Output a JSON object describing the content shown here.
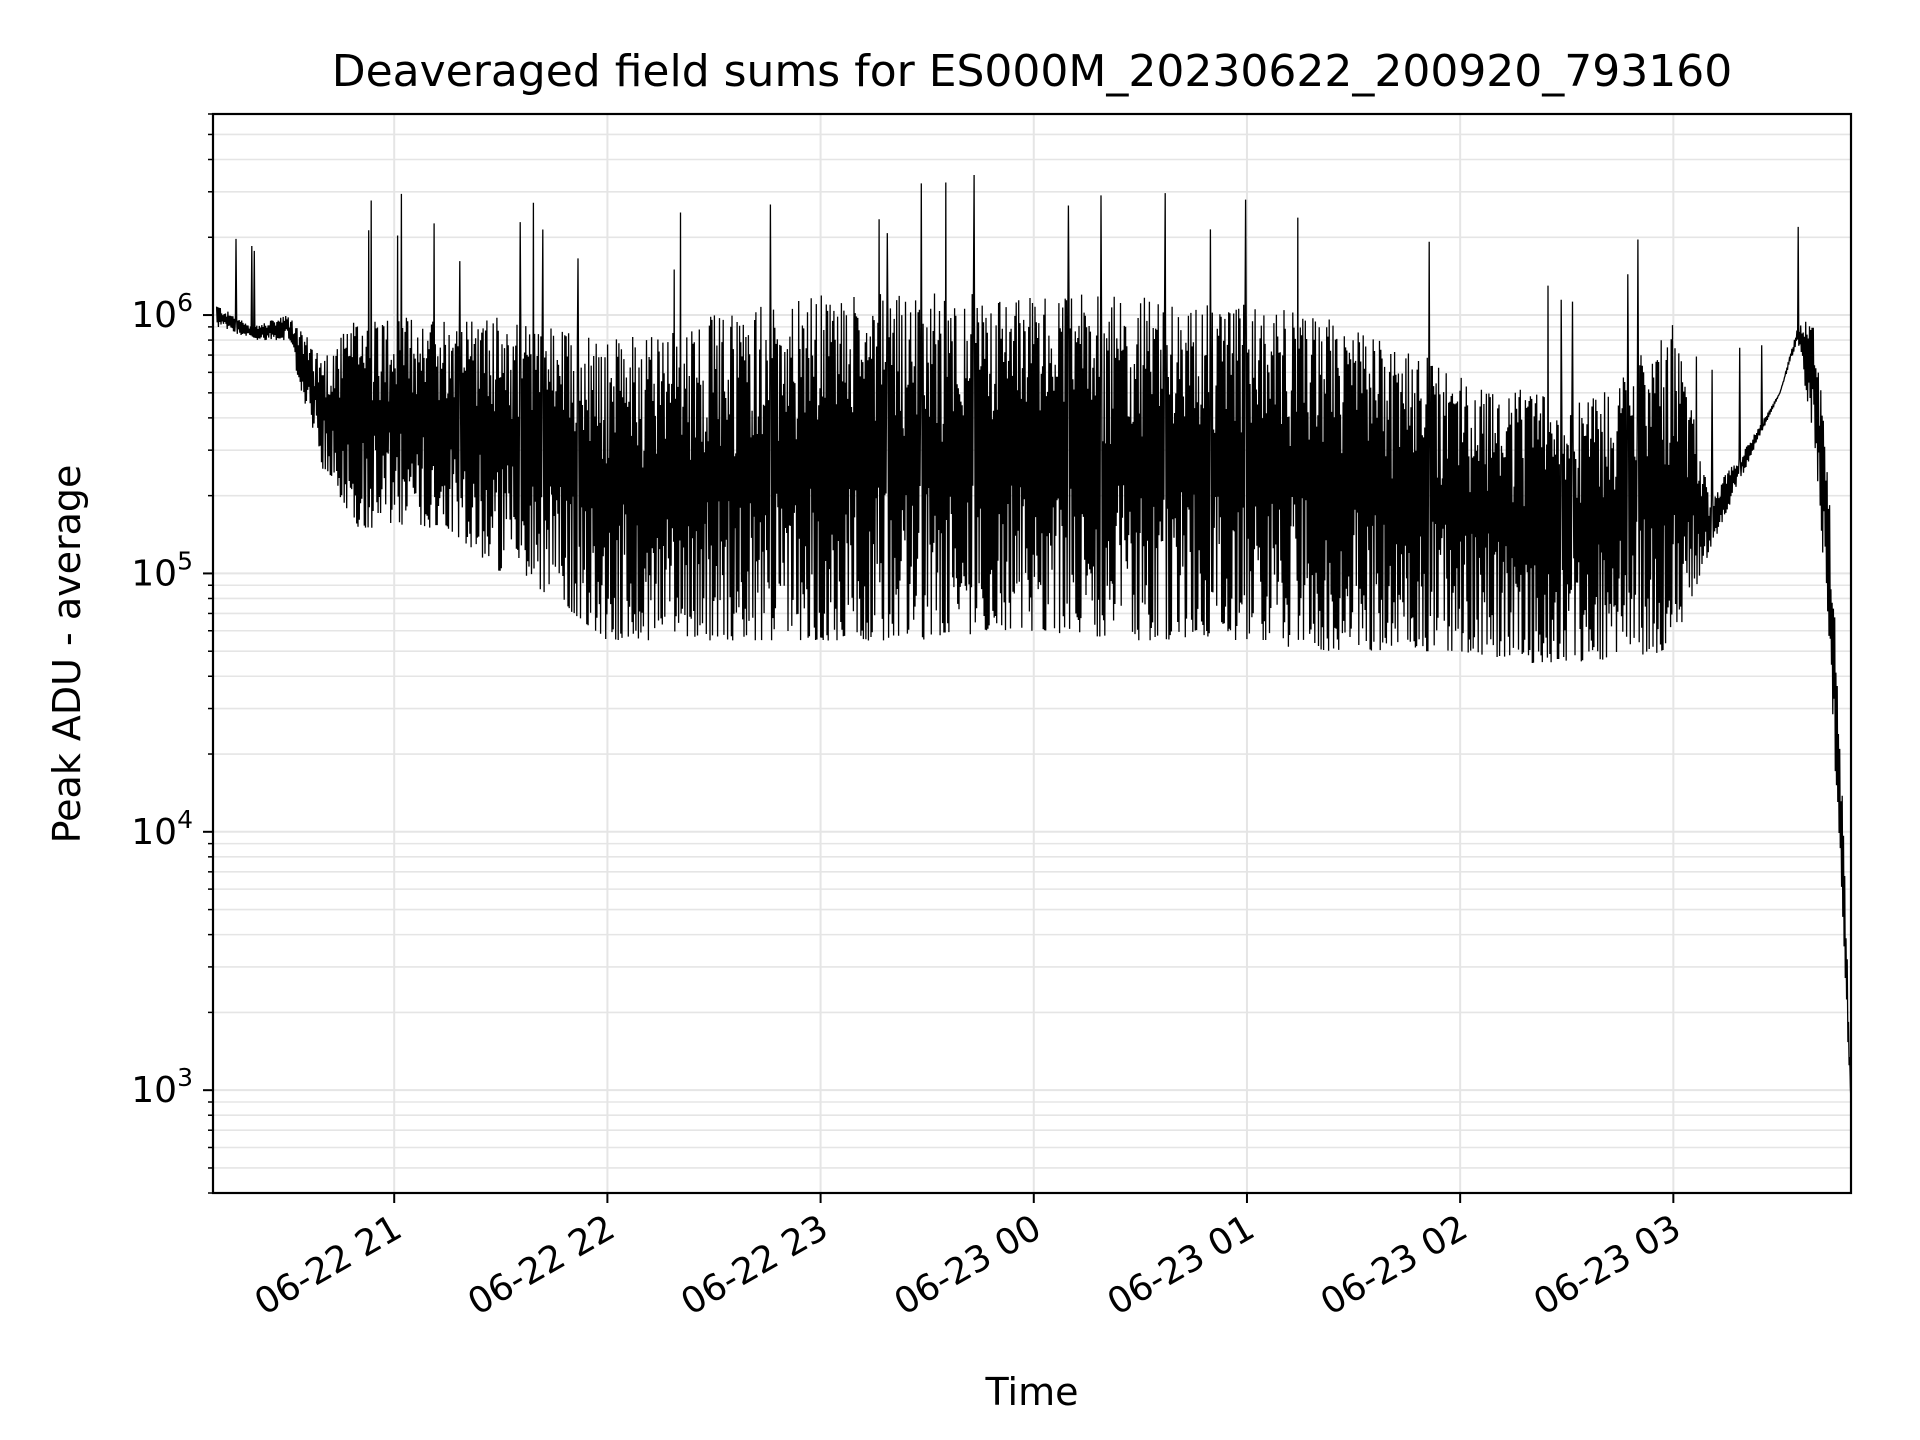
{
  "chart_data": {
    "type": "line",
    "title": "Deaveraged field sums for ES000M_20230622_200920_793160",
    "xlabel": "Time",
    "ylabel": "Peak ADU - average",
    "yscale": "log",
    "ylim": [
      400,
      6000000
    ],
    "xlim": [
      "2023-06-22 20:09",
      "2023-06-23 03:50"
    ],
    "grid": true,
    "line_color": "#000000",
    "grid_color": "#e5e5e5",
    "x_ticks": [
      {
        "label": "06-22 21",
        "value": "2023-06-22 21:00"
      },
      {
        "label": "06-22 22",
        "value": "2023-06-22 22:00"
      },
      {
        "label": "06-22 23",
        "value": "2023-06-22 23:00"
      },
      {
        "label": "06-23 00",
        "value": "2023-06-23 00:00"
      },
      {
        "label": "06-23 01",
        "value": "2023-06-23 01:00"
      },
      {
        "label": "06-23 02",
        "value": "2023-06-23 02:00"
      },
      {
        "label": "06-23 03",
        "value": "2023-06-23 03:00"
      }
    ],
    "y_ticks": [
      {
        "base": "10",
        "exp": "3",
        "value": 1000
      },
      {
        "base": "10",
        "exp": "4",
        "value": 10000
      },
      {
        "base": "10",
        "exp": "5",
        "value": 100000
      },
      {
        "base": "10",
        "exp": "6",
        "value": 1000000
      }
    ],
    "series": [
      {
        "note": "approximate envelope of the signal; the series alternates between the upper and lower envelope",
        "time": [
          "2023-06-22 20:10",
          "2023-06-22 20:20",
          "2023-06-22 20:30",
          "2023-06-22 20:40",
          "2023-06-22 20:50",
          "2023-06-22 21:00",
          "2023-06-22 21:15",
          "2023-06-22 21:30",
          "2023-06-22 21:45",
          "2023-06-22 22:00",
          "2023-06-22 22:15",
          "2023-06-22 22:30",
          "2023-06-22 22:45",
          "2023-06-22 23:00",
          "2023-06-22 23:30",
          "2023-06-23 00:00",
          "2023-06-23 00:30",
          "2023-06-23 01:00",
          "2023-06-23 01:20",
          "2023-06-23 01:40",
          "2023-06-23 02:00",
          "2023-06-23 02:20",
          "2023-06-23 02:40",
          "2023-06-23 03:00",
          "2023-06-23 03:10",
          "2023-06-23 03:20",
          "2023-06-23 03:30",
          "2023-06-23 03:35",
          "2023-06-23 03:40",
          "2023-06-23 03:44",
          "2023-06-23 03:48",
          "2023-06-23 03:50"
        ],
        "upper": [
          1100000,
          900000,
          1000000,
          700000,
          1000000,
          1000000,
          1000000,
          1000000,
          900000,
          800000,
          900000,
          1000000,
          1100000,
          1200000,
          1250000,
          1200000,
          1200000,
          1100000,
          1000000,
          800000,
          600000,
          500000,
          500000,
          1000000,
          200000,
          300000,
          500000,
          900000,
          1000000,
          200000,
          10000,
          900
        ],
        "lower": [
          900000,
          800000,
          800000,
          250000,
          150000,
          150000,
          150000,
          100000,
          80000,
          55000,
          55000,
          55000,
          55000,
          55000,
          55000,
          60000,
          55000,
          55000,
          50000,
          50000,
          50000,
          45000,
          45000,
          50000,
          120000,
          250000,
          500000,
          800000,
          300000,
          50000,
          3000,
          900
        ]
      }
    ]
  }
}
